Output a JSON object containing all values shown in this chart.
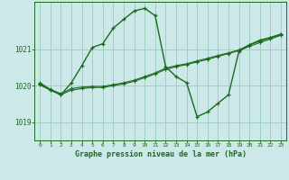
{
  "title": "Graphe pression niveau de la mer (hPa)",
  "background_color": "#cce8e8",
  "grid_color": "#99ccbb",
  "line_color": "#1a6b1a",
  "text_color": "#1a6b1a",
  "xlim": [
    -0.5,
    23.5
  ],
  "ylim": [
    1018.5,
    1022.3
  ],
  "y_ticks": [
    1019,
    1020,
    1021
  ],
  "x_ticks": [
    0,
    1,
    2,
    3,
    4,
    5,
    6,
    7,
    8,
    9,
    10,
    11,
    12,
    13,
    14,
    15,
    16,
    17,
    18,
    19,
    20,
    21,
    22,
    23
  ],
  "s1_x": [
    0,
    1,
    2,
    3,
    4,
    5,
    6,
    7,
    8,
    9,
    10,
    11,
    12,
    13,
    14,
    15,
    16,
    17,
    18,
    19,
    20,
    21,
    22,
    23
  ],
  "s1_y": [
    1020.02,
    1019.88,
    1019.75,
    1019.88,
    1019.92,
    1019.95,
    1019.95,
    1020.0,
    1020.05,
    1020.12,
    1020.22,
    1020.32,
    1020.45,
    1020.52,
    1020.58,
    1020.65,
    1020.72,
    1020.8,
    1020.88,
    1020.96,
    1021.08,
    1021.18,
    1021.28,
    1021.38
  ],
  "s2_x": [
    0,
    1,
    2,
    3,
    4,
    5,
    6,
    7,
    8,
    9,
    10,
    11,
    12,
    13,
    14,
    15,
    16,
    17,
    18,
    19,
    20,
    21,
    22,
    23
  ],
  "s2_y": [
    1020.08,
    1019.9,
    1019.78,
    1019.92,
    1019.96,
    1019.98,
    1019.98,
    1020.03,
    1020.08,
    1020.15,
    1020.25,
    1020.35,
    1020.48,
    1020.55,
    1020.6,
    1020.68,
    1020.75,
    1020.83,
    1020.9,
    1020.98,
    1021.12,
    1021.22,
    1021.32,
    1021.42
  ],
  "s3_x": [
    0,
    1,
    2,
    3,
    4,
    5,
    6,
    7,
    8,
    9,
    10,
    11,
    12,
    13,
    14,
    15,
    16,
    17,
    18,
    19,
    20,
    21,
    22,
    23
  ],
  "s3_y": [
    1020.05,
    1019.88,
    1019.75,
    1020.08,
    1020.55,
    1021.05,
    1021.15,
    1021.58,
    1021.82,
    1022.05,
    1022.12,
    1021.92,
    1020.52,
    1020.25,
    1020.08,
    1019.15,
    1019.28,
    1019.52,
    1019.75,
    1020.95,
    1021.12,
    1021.25,
    1021.32,
    1021.4
  ]
}
